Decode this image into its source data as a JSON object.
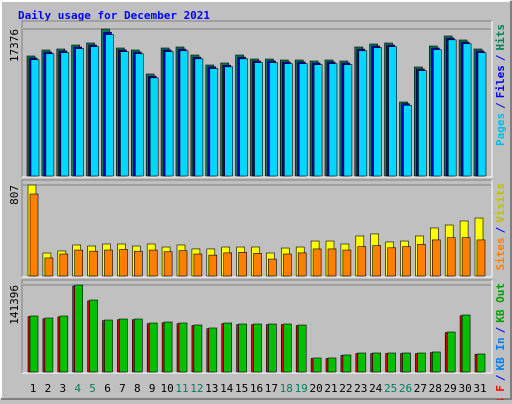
{
  "chart_data": [
    {
      "type": "bar",
      "title": "Daily usage for December 2021",
      "legend_separator": "/",
      "ylim": [
        0,
        17376
      ],
      "yticks": [
        17376
      ],
      "legend": [
        {
          "text": "Pages",
          "color": "#00c0e0"
        },
        {
          "text": "Files",
          "color": "#0000ff"
        },
        {
          "text": "Hits",
          "color": "#00805c"
        }
      ],
      "series": [
        {
          "color": "#00805c",
          "values": [
            14184,
            14893,
            15011,
            15484,
            15721,
            17376,
            15130,
            14893,
            12056,
            15130,
            15248,
            14302,
            13120,
            13357,
            14302,
            13829,
            13829,
            13711,
            13711,
            13593,
            13711,
            13593,
            15248,
            15602,
            15721,
            8747,
            12884,
            15366,
            16548,
            16075,
            15011
          ]
        },
        {
          "color": "#0000c0",
          "values": [
            13950,
            14650,
            14780,
            15250,
            15480,
            17000,
            14900,
            14650,
            11800,
            14900,
            15000,
            14050,
            12900,
            13100,
            14050,
            13600,
            13600,
            13480,
            13480,
            13360,
            13480,
            13360,
            15000,
            15360,
            15480,
            8550,
            12650,
            15130,
            16300,
            15830,
            14780
          ]
        },
        {
          "color": "#00d8ff",
          "values": [
            13750,
            14450,
            14580,
            15050,
            15280,
            16700,
            14700,
            14450,
            11600,
            14700,
            14800,
            13850,
            12700,
            12900,
            13850,
            13400,
            13400,
            13280,
            13280,
            13160,
            13280,
            13160,
            14800,
            15160,
            15280,
            8350,
            12450,
            14930,
            16100,
            15630,
            14580
          ]
        }
      ]
    },
    {
      "type": "bar",
      "ylim": [
        0,
        807
      ],
      "yticks": [
        807
      ],
      "legend": [
        {
          "text": "Sites",
          "color": "#ff8000"
        },
        {
          "text": "Visits",
          "color": "#c0c000"
        }
      ],
      "series": [
        {
          "color": "#ffff00",
          "values": [
            807,
            204,
            222,
            275,
            266,
            284,
            284,
            266,
            284,
            257,
            275,
            240,
            240,
            257,
            257,
            257,
            204,
            248,
            257,
            310,
            310,
            284,
            355,
            373,
            302,
            310,
            355,
            426,
            452,
            488,
            514
          ]
        },
        {
          "color": "#ff8000",
          "values": [
            727,
            160,
            195,
            230,
            220,
            230,
            235,
            220,
            230,
            215,
            225,
            195,
            185,
            205,
            210,
            200,
            150,
            195,
            205,
            240,
            240,
            230,
            260,
            270,
            250,
            260,
            280,
            320,
            340,
            340,
            320
          ]
        }
      ]
    },
    {
      "type": "bar",
      "ylim": [
        0,
        141396
      ],
      "yticks": [
        141396
      ],
      "categories": [
        "1",
        "2",
        "3",
        "4",
        "5",
        "6",
        "7",
        "8",
        "9",
        "10",
        "11",
        "12",
        "13",
        "14",
        "15",
        "16",
        "17",
        "18",
        "19",
        "20",
        "21",
        "22",
        "23",
        "24",
        "25",
        "26",
        "27",
        "28",
        "29",
        "30",
        "31"
      ],
      "category_colors": [
        "#000000",
        "#000000",
        "#000000",
        "#00805c",
        "#00805c",
        "#000000",
        "#000000",
        "#000000",
        "#000000",
        "#000000",
        "#00805c",
        "#00805c",
        "#000000",
        "#000000",
        "#000000",
        "#000000",
        "#000000",
        "#00805c",
        "#00805c",
        "#000000",
        "#000000",
        "#000000",
        "#000000",
        "#000000",
        "#00805c",
        "#00805c",
        "#000000",
        "#000000",
        "#000000",
        "#000000",
        "#000000"
      ],
      "legend": [
        {
          "text": "KB F",
          "color": "#ff0000"
        },
        {
          "text": "KB In",
          "color": "#0080ff"
        },
        {
          "text": "KB Out",
          "color": "#00a000"
        }
      ],
      "series": [
        {
          "color": "#e00000",
          "values": [
            90000,
            86500,
            89500,
            139500,
            115500,
            83500,
            85000,
            85000,
            78500,
            80000,
            78500,
            75500,
            70500,
            78500,
            77000,
            77000,
            77000,
            77000,
            75500,
            22000,
            22000,
            27000,
            30000,
            30000,
            30000,
            30000,
            30000,
            31500,
            64000,
            91500,
            28500
          ]
        },
        {
          "color": "#00c000",
          "values": [
            91000,
            87750,
            91000,
            141396,
            117000,
            84500,
            86125,
            86125,
            79625,
            81250,
            79625,
            76375,
            71500,
            79625,
            78000,
            78000,
            78000,
            78000,
            76375,
            22750,
            22750,
            27625,
            30875,
            30875,
            30875,
            30875,
            30875,
            32500,
            65000,
            92625,
            29250
          ]
        }
      ]
    }
  ]
}
